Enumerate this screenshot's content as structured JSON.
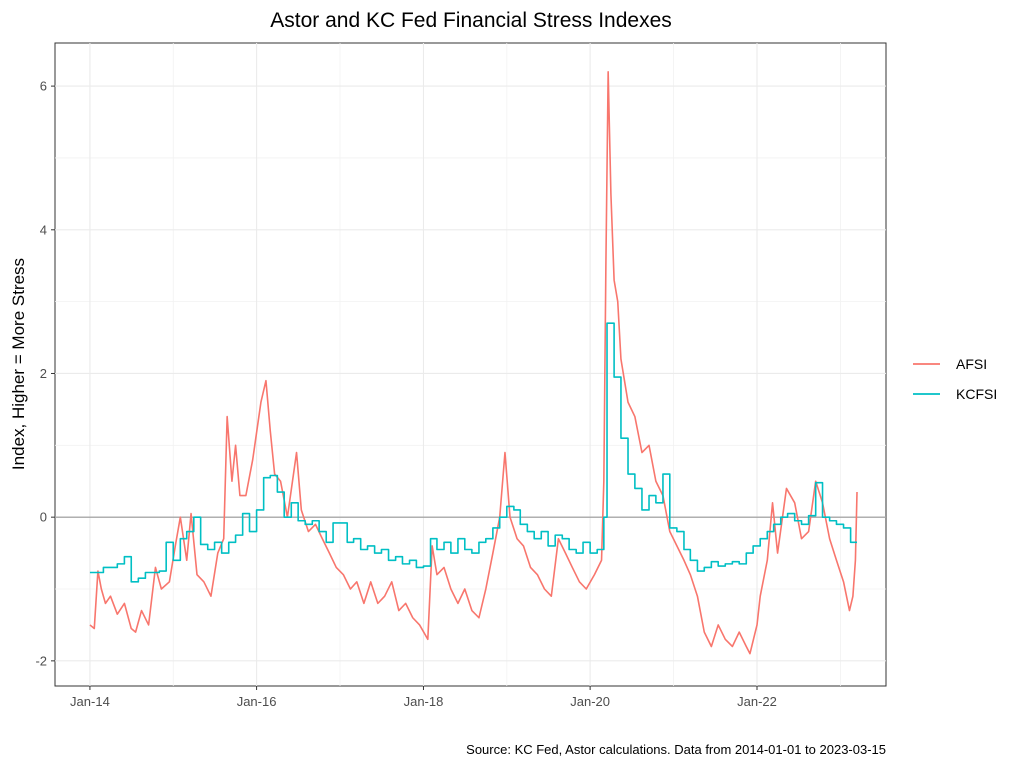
{
  "chart_data": {
    "type": "line",
    "title": "Astor and KC Fed Financial Stress Indexes",
    "xlabel": "",
    "ylabel": "Index, Higher = More Stress",
    "caption": "Source: KC Fed, Astor calculations. Data from 2014-01-01 to 2023-03-15",
    "x_range": [
      "2014-01-01",
      "2023-03-15"
    ],
    "xlim": [
      "2013-08-01",
      "2023-07-20"
    ],
    "ylim": [
      -2.35,
      6.6
    ],
    "x_ticks": [
      {
        "date": "2014-01-01",
        "label": "Jan-14"
      },
      {
        "date": "2016-01-01",
        "label": "Jan-16"
      },
      {
        "date": "2018-01-01",
        "label": "Jan-18"
      },
      {
        "date": "2020-01-01",
        "label": "Jan-20"
      },
      {
        "date": "2022-01-01",
        "label": "Jan-22"
      }
    ],
    "y_ticks": [
      {
        "value": -2,
        "label": "-2"
      },
      {
        "value": 0,
        "label": "0"
      },
      {
        "value": 2,
        "label": "2"
      },
      {
        "value": 4,
        "label": "4"
      },
      {
        "value": 6,
        "label": "6"
      }
    ],
    "reference_line": 0,
    "grid": true,
    "legend_position": "right",
    "series": [
      {
        "name": "AFSI",
        "color": "#F8766D",
        "step": false,
        "points": [
          [
            "2014-01-01",
            -1.5
          ],
          [
            "2014-01-20",
            -1.55
          ],
          [
            "2014-02-05",
            -0.75
          ],
          [
            "2014-02-20",
            -1.0
          ],
          [
            "2014-03-10",
            -1.2
          ],
          [
            "2014-04-01",
            -1.1
          ],
          [
            "2014-05-01",
            -1.35
          ],
          [
            "2014-06-01",
            -1.2
          ],
          [
            "2014-07-01",
            -1.55
          ],
          [
            "2014-07-20",
            -1.6
          ],
          [
            "2014-08-15",
            -1.3
          ],
          [
            "2014-09-15",
            -1.5
          ],
          [
            "2014-10-15",
            -0.7
          ],
          [
            "2014-11-10",
            -1.0
          ],
          [
            "2014-12-15",
            -0.9
          ],
          [
            "2015-01-10",
            -0.4
          ],
          [
            "2015-02-01",
            0.0
          ],
          [
            "2015-03-01",
            -0.6
          ],
          [
            "2015-03-20",
            0.05
          ],
          [
            "2015-04-15",
            -0.8
          ],
          [
            "2015-05-15",
            -0.9
          ],
          [
            "2015-06-15",
            -1.1
          ],
          [
            "2015-07-15",
            -0.5
          ],
          [
            "2015-08-10",
            -0.3
          ],
          [
            "2015-08-25",
            1.4
          ],
          [
            "2015-09-15",
            0.5
          ],
          [
            "2015-10-01",
            1.0
          ],
          [
            "2015-10-20",
            0.3
          ],
          [
            "2015-11-15",
            0.3
          ],
          [
            "2015-12-15",
            0.8
          ],
          [
            "2016-01-20",
            1.6
          ],
          [
            "2016-02-11",
            1.9
          ],
          [
            "2016-03-01",
            1.2
          ],
          [
            "2016-03-20",
            0.6
          ],
          [
            "2016-04-15",
            0.5
          ],
          [
            "2016-05-15",
            0.0
          ],
          [
            "2016-06-24",
            0.9
          ],
          [
            "2016-07-15",
            0.1
          ],
          [
            "2016-08-15",
            -0.2
          ],
          [
            "2016-09-15",
            -0.1
          ],
          [
            "2016-10-15",
            -0.3
          ],
          [
            "2016-11-15",
            -0.5
          ],
          [
            "2016-12-15",
            -0.7
          ],
          [
            "2017-01-15",
            -0.8
          ],
          [
            "2017-02-15",
            -1.0
          ],
          [
            "2017-03-15",
            -0.9
          ],
          [
            "2017-04-15",
            -1.2
          ],
          [
            "2017-05-15",
            -0.9
          ],
          [
            "2017-06-15",
            -1.2
          ],
          [
            "2017-07-15",
            -1.1
          ],
          [
            "2017-08-15",
            -0.9
          ],
          [
            "2017-09-15",
            -1.3
          ],
          [
            "2017-10-15",
            -1.2
          ],
          [
            "2017-11-15",
            -1.4
          ],
          [
            "2017-12-15",
            -1.5
          ],
          [
            "2018-01-20",
            -1.7
          ],
          [
            "2018-02-08",
            -0.4
          ],
          [
            "2018-03-01",
            -0.8
          ],
          [
            "2018-04-01",
            -0.7
          ],
          [
            "2018-05-01",
            -1.0
          ],
          [
            "2018-06-01",
            -1.2
          ],
          [
            "2018-07-01",
            -1.0
          ],
          [
            "2018-08-01",
            -1.3
          ],
          [
            "2018-09-01",
            -1.4
          ],
          [
            "2018-10-01",
            -1.0
          ],
          [
            "2018-11-01",
            -0.5
          ],
          [
            "2018-12-01",
            0.0
          ],
          [
            "2018-12-24",
            0.9
          ],
          [
            "2019-01-15",
            0.0
          ],
          [
            "2019-02-15",
            -0.3
          ],
          [
            "2019-03-15",
            -0.4
          ],
          [
            "2019-04-15",
            -0.7
          ],
          [
            "2019-05-15",
            -0.8
          ],
          [
            "2019-06-15",
            -1.0
          ],
          [
            "2019-07-15",
            -1.1
          ],
          [
            "2019-08-15",
            -0.3
          ],
          [
            "2019-09-15",
            -0.5
          ],
          [
            "2019-10-15",
            -0.7
          ],
          [
            "2019-11-15",
            -0.9
          ],
          [
            "2019-12-15",
            -1.0
          ],
          [
            "2020-01-20",
            -0.8
          ],
          [
            "2020-02-20",
            -0.6
          ],
          [
            "2020-03-01",
            0.5
          ],
          [
            "2020-03-10",
            3.5
          ],
          [
            "2020-03-20",
            6.2
          ],
          [
            "2020-04-01",
            4.5
          ],
          [
            "2020-04-15",
            3.3
          ],
          [
            "2020-05-01",
            3.0
          ],
          [
            "2020-05-15",
            2.2
          ],
          [
            "2020-06-15",
            1.6
          ],
          [
            "2020-07-15",
            1.4
          ],
          [
            "2020-08-15",
            0.9
          ],
          [
            "2020-09-15",
            1.0
          ],
          [
            "2020-10-15",
            0.5
          ],
          [
            "2020-11-15",
            0.3
          ],
          [
            "2020-12-15",
            -0.2
          ],
          [
            "2021-01-15",
            -0.4
          ],
          [
            "2021-02-15",
            -0.6
          ],
          [
            "2021-03-15",
            -0.8
          ],
          [
            "2021-04-15",
            -1.1
          ],
          [
            "2021-05-15",
            -1.6
          ],
          [
            "2021-06-15",
            -1.8
          ],
          [
            "2021-07-15",
            -1.5
          ],
          [
            "2021-08-15",
            -1.7
          ],
          [
            "2021-09-15",
            -1.8
          ],
          [
            "2021-10-15",
            -1.6
          ],
          [
            "2021-11-15",
            -1.8
          ],
          [
            "2021-12-01",
            -1.9
          ],
          [
            "2022-01-01",
            -1.5
          ],
          [
            "2022-01-15",
            -1.1
          ],
          [
            "2022-02-15",
            -0.6
          ],
          [
            "2022-03-10",
            0.2
          ],
          [
            "2022-04-01",
            -0.5
          ],
          [
            "2022-05-10",
            0.4
          ],
          [
            "2022-06-15",
            0.2
          ],
          [
            "2022-07-15",
            -0.3
          ],
          [
            "2022-08-15",
            -0.2
          ],
          [
            "2022-09-15",
            0.5
          ],
          [
            "2022-10-15",
            0.2
          ],
          [
            "2022-11-15",
            -0.3
          ],
          [
            "2022-12-15",
            -0.6
          ],
          [
            "2023-01-15",
            -0.9
          ],
          [
            "2023-02-10",
            -1.3
          ],
          [
            "2023-02-25",
            -1.1
          ],
          [
            "2023-03-08",
            -0.6
          ],
          [
            "2023-03-15",
            0.35
          ]
        ]
      },
      {
        "name": "KCFSI",
        "color": "#00BFC4",
        "step": true,
        "points": [
          [
            "2014-01-01",
            -0.77
          ],
          [
            "2014-03-01",
            -0.7
          ],
          [
            "2014-05-01",
            -0.65
          ],
          [
            "2014-06-01",
            -0.55
          ],
          [
            "2014-07-01",
            -0.9
          ],
          [
            "2014-08-01",
            -0.85
          ],
          [
            "2014-09-01",
            -0.77
          ],
          [
            "2014-11-01",
            -0.75
          ],
          [
            "2014-12-01",
            -0.35
          ],
          [
            "2015-01-01",
            -0.6
          ],
          [
            "2015-02-01",
            -0.3
          ],
          [
            "2015-03-01",
            -0.2
          ],
          [
            "2015-04-01",
            0.0
          ],
          [
            "2015-05-01",
            -0.38
          ],
          [
            "2015-06-01",
            -0.45
          ],
          [
            "2015-07-01",
            -0.35
          ],
          [
            "2015-08-01",
            -0.5
          ],
          [
            "2015-09-01",
            -0.35
          ],
          [
            "2015-10-01",
            -0.25
          ],
          [
            "2015-11-01",
            0.05
          ],
          [
            "2015-12-01",
            -0.2
          ],
          [
            "2016-01-01",
            0.1
          ],
          [
            "2016-02-01",
            0.55
          ],
          [
            "2016-03-01",
            0.58
          ],
          [
            "2016-04-01",
            0.35
          ],
          [
            "2016-05-01",
            0.0
          ],
          [
            "2016-06-01",
            0.2
          ],
          [
            "2016-07-01",
            -0.05
          ],
          [
            "2016-08-01",
            -0.1
          ],
          [
            "2016-09-01",
            -0.05
          ],
          [
            "2016-10-01",
            -0.2
          ],
          [
            "2016-11-01",
            -0.35
          ],
          [
            "2016-12-01",
            -0.08
          ],
          [
            "2017-01-01",
            -0.08
          ],
          [
            "2017-02-01",
            -0.35
          ],
          [
            "2017-03-01",
            -0.3
          ],
          [
            "2017-04-01",
            -0.45
          ],
          [
            "2017-05-01",
            -0.4
          ],
          [
            "2017-06-01",
            -0.5
          ],
          [
            "2017-07-01",
            -0.45
          ],
          [
            "2017-08-01",
            -0.6
          ],
          [
            "2017-09-01",
            -0.55
          ],
          [
            "2017-10-01",
            -0.65
          ],
          [
            "2017-11-01",
            -0.6
          ],
          [
            "2017-12-01",
            -0.7
          ],
          [
            "2018-01-01",
            -0.68
          ],
          [
            "2018-02-01",
            -0.3
          ],
          [
            "2018-03-01",
            -0.45
          ],
          [
            "2018-04-01",
            -0.35
          ],
          [
            "2018-05-01",
            -0.5
          ],
          [
            "2018-06-01",
            -0.3
          ],
          [
            "2018-07-01",
            -0.45
          ],
          [
            "2018-08-01",
            -0.5
          ],
          [
            "2018-09-01",
            -0.35
          ],
          [
            "2018-10-01",
            -0.3
          ],
          [
            "2018-11-01",
            -0.15
          ],
          [
            "2018-12-01",
            0.0
          ],
          [
            "2019-01-01",
            0.15
          ],
          [
            "2019-02-01",
            0.1
          ],
          [
            "2019-03-01",
            -0.1
          ],
          [
            "2019-04-01",
            -0.2
          ],
          [
            "2019-05-01",
            -0.3
          ],
          [
            "2019-06-01",
            -0.2
          ],
          [
            "2019-07-01",
            -0.4
          ],
          [
            "2019-08-01",
            -0.25
          ],
          [
            "2019-09-01",
            -0.3
          ],
          [
            "2019-10-01",
            -0.45
          ],
          [
            "2019-11-01",
            -0.5
          ],
          [
            "2019-12-01",
            -0.35
          ],
          [
            "2020-01-01",
            -0.5
          ],
          [
            "2020-02-01",
            -0.45
          ],
          [
            "2020-03-01",
            0.0
          ],
          [
            "2020-03-15",
            2.7
          ],
          [
            "2020-04-15",
            1.95
          ],
          [
            "2020-05-15",
            1.1
          ],
          [
            "2020-06-15",
            0.6
          ],
          [
            "2020-07-15",
            0.4
          ],
          [
            "2020-08-15",
            0.1
          ],
          [
            "2020-09-15",
            0.3
          ],
          [
            "2020-10-15",
            0.2
          ],
          [
            "2020-11-15",
            0.6
          ],
          [
            "2020-12-15",
            -0.15
          ],
          [
            "2021-01-15",
            -0.2
          ],
          [
            "2021-02-15",
            -0.45
          ],
          [
            "2021-03-15",
            -0.6
          ],
          [
            "2021-04-15",
            -0.75
          ],
          [
            "2021-05-15",
            -0.7
          ],
          [
            "2021-06-15",
            -0.62
          ],
          [
            "2021-07-15",
            -0.68
          ],
          [
            "2021-08-15",
            -0.65
          ],
          [
            "2021-09-15",
            -0.62
          ],
          [
            "2021-10-15",
            -0.65
          ],
          [
            "2021-11-15",
            -0.5
          ],
          [
            "2021-12-15",
            -0.4
          ],
          [
            "2022-01-15",
            -0.3
          ],
          [
            "2022-02-15",
            -0.2
          ],
          [
            "2022-03-15",
            -0.1
          ],
          [
            "2022-04-15",
            0.0
          ],
          [
            "2022-05-15",
            0.05
          ],
          [
            "2022-06-15",
            -0.05
          ],
          [
            "2022-07-15",
            -0.1
          ],
          [
            "2022-08-15",
            0.02
          ],
          [
            "2022-09-15",
            0.48
          ],
          [
            "2022-10-15",
            0.0
          ],
          [
            "2022-11-15",
            -0.05
          ],
          [
            "2022-12-15",
            -0.1
          ],
          [
            "2023-01-15",
            -0.15
          ],
          [
            "2023-02-15",
            -0.35
          ],
          [
            "2023-03-15",
            -0.35
          ]
        ]
      }
    ]
  }
}
